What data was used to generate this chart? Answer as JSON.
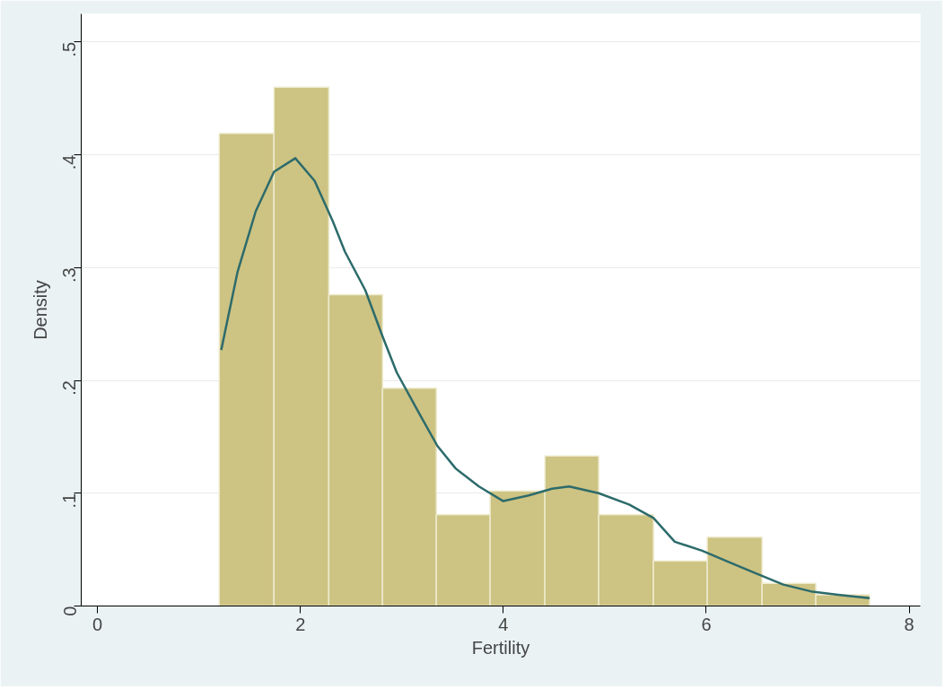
{
  "chart_data": {
    "type": "histogram",
    "xlabel": "Fertility",
    "ylabel": "Density",
    "bins": [
      1.2,
      1.74,
      2.28,
      2.81,
      3.34,
      3.87,
      4.41,
      4.94,
      5.48,
      6.01,
      6.55,
      7.08,
      7.61
    ],
    "values": [
      0.419,
      0.46,
      0.276,
      0.193,
      0.081,
      0.102,
      0.133,
      0.081,
      0.04,
      0.061,
      0.02,
      0.01
    ],
    "color": "#cdc383",
    "series": [
      {
        "type": "line",
        "color": "#2d6b6b",
        "x": [
          1.22,
          1.38,
          1.56,
          1.74,
          1.95,
          2.14,
          2.32,
          2.44,
          2.64,
          2.81,
          2.95,
          3.17,
          3.35,
          3.53,
          3.76,
          4.0,
          4.25,
          4.48,
          4.65,
          4.94,
          5.24,
          5.48,
          5.69,
          5.96,
          6.22,
          6.49,
          6.76,
          7.03,
          7.3,
          7.61
        ],
        "values": [
          0.227,
          0.296,
          0.35,
          0.385,
          0.397,
          0.377,
          0.341,
          0.314,
          0.28,
          0.239,
          0.207,
          0.171,
          0.142,
          0.122,
          0.106,
          0.093,
          0.098,
          0.104,
          0.106,
          0.1,
          0.09,
          0.078,
          0.057,
          0.049,
          0.039,
          0.029,
          0.019,
          0.013,
          0.01,
          0.007
        ]
      }
    ],
    "xlim": [
      -0.16,
      8.11
    ],
    "ylim": [
      0,
      0.525
    ],
    "xticks": [
      0,
      2,
      4,
      6,
      8
    ],
    "yticks": [
      {
        "value": 0,
        "label": "0"
      },
      {
        "value": 0.1,
        "label": ".1"
      },
      {
        "value": 0.2,
        "label": ".2"
      },
      {
        "value": 0.3,
        "label": ".3"
      },
      {
        "value": 0.4,
        "label": ".4"
      },
      {
        "value": 0.5,
        "label": ".5"
      }
    ],
    "grid": "y"
  }
}
